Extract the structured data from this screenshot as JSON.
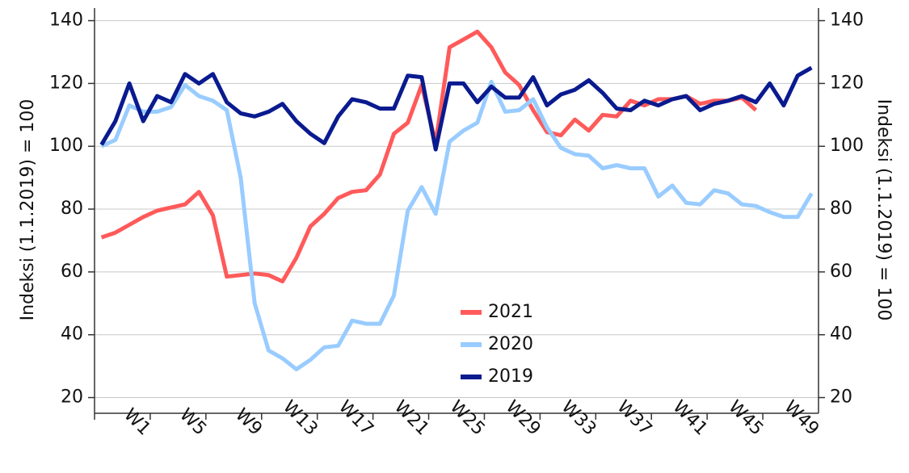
{
  "chart_data": {
    "type": "line",
    "y_label": "Indeksi (1.1.2019) = 100",
    "y2_label": "Indeksi (1.1.2019) = 100",
    "categories": [
      "W1",
      null,
      null,
      null,
      "W5",
      null,
      null,
      null,
      "W9",
      null,
      null,
      null,
      "W13",
      null,
      null,
      null,
      "W17",
      null,
      null,
      null,
      "W21",
      null,
      null,
      null,
      "W25",
      null,
      null,
      null,
      "W29",
      null,
      null,
      null,
      "W33",
      null,
      null,
      null,
      "W37",
      null,
      null,
      null,
      "W41",
      null,
      null,
      null,
      "W45",
      null,
      null,
      null,
      "W49",
      null,
      null,
      null
    ],
    "ylim": [
      15,
      144
    ],
    "yticks": [
      20,
      40,
      60,
      80,
      100,
      120,
      140
    ],
    "y2lim": [
      15,
      144
    ],
    "y2ticks": [
      20,
      40,
      60,
      80,
      100,
      120,
      140
    ],
    "grid": true,
    "series": [
      {
        "name": "2021",
        "color": "#ff5a5a",
        "values": [
          71,
          72.5,
          75,
          77.5,
          79.5,
          80.5,
          81.5,
          85.5,
          78,
          58.5,
          59,
          59.5,
          59,
          57,
          64.5,
          74.5,
          78.5,
          83.5,
          85.5,
          86,
          91,
          104,
          107.5,
          119.5,
          101,
          131.5,
          134,
          136.5,
          131.5,
          123.5,
          119.5,
          111.5,
          104.5,
          103.5,
          108.5,
          105,
          110,
          109.5,
          114.5,
          113,
          115,
          115,
          116,
          113.5,
          114.5,
          114.5,
          115.5,
          111.5,
          null,
          null,
          null,
          null
        ]
      },
      {
        "name": "2020",
        "color": "#99ccff",
        "values": [
          100,
          102,
          113,
          111,
          111,
          112.5,
          119.5,
          116,
          114.5,
          111.5,
          90,
          50,
          35,
          32.5,
          29,
          32,
          36,
          36.5,
          44.5,
          43.5,
          43.5,
          52.5,
          79.5,
          87,
          78.5,
          101.5,
          105,
          107.5,
          120.5,
          111,
          111.5,
          115,
          106,
          99.5,
          97.5,
          97,
          93,
          94,
          93,
          93,
          84,
          87.5,
          82,
          81.5,
          86,
          85,
          81.5,
          81,
          79,
          77.5,
          77.5,
          85
        ]
      },
      {
        "name": "2019",
        "color": "#0a1a8f",
        "values": [
          100.5,
          108,
          120,
          108,
          116,
          114,
          123,
          120,
          123,
          114,
          110.5,
          109.5,
          111,
          113.5,
          108,
          104,
          101,
          109.5,
          115,
          114,
          112,
          112,
          122.5,
          122,
          99,
          120,
          120,
          114,
          119,
          115.5,
          115.5,
          122,
          113,
          116.5,
          118,
          121,
          117,
          112,
          111.5,
          114.5,
          113,
          115,
          116,
          111.5,
          113.5,
          114.5,
          116,
          114,
          120,
          113,
          122.5,
          125
        ]
      }
    ]
  }
}
